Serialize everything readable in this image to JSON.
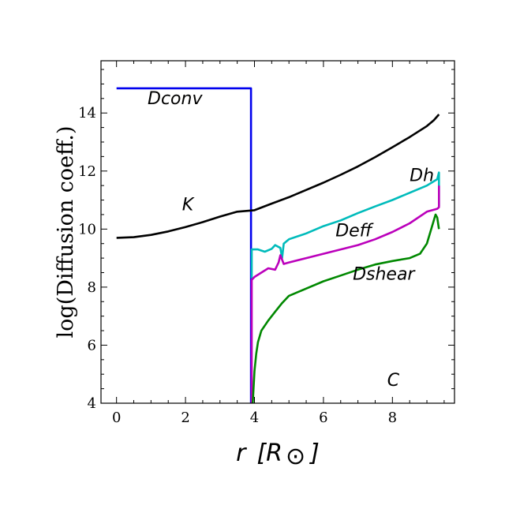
{
  "chart_data": {
    "type": "line",
    "title": "",
    "ylabel": "log(Diffusion coeff.)",
    "xlabel_main": "r",
    "xlabel_unit": "[R",
    "xlabel_sun": "⊙",
    "xlabel_close": "]",
    "xlim": [
      -0.45,
      9.8
    ],
    "ylim": [
      4,
      15.8
    ],
    "xticks": [
      0,
      2,
      4,
      6,
      8
    ],
    "yticks": [
      4,
      6,
      8,
      10,
      12,
      14
    ],
    "grid": false,
    "annotations": [
      {
        "text": "Dconv",
        "x": 0.9,
        "y": 14.3
      },
      {
        "text": "K",
        "x": 1.9,
        "y": 10.65
      },
      {
        "text": "Dh",
        "x": 8.5,
        "y": 11.65
      },
      {
        "text": "Deff",
        "x": 6.35,
        "y": 9.75
      },
      {
        "text": "Dshear",
        "x": 6.85,
        "y": 8.25
      },
      {
        "text": "C",
        "x": 7.85,
        "y": 4.6
      }
    ],
    "series": [
      {
        "color": "#0000ee",
        "x": [
          0,
          3.9,
          3.9
        ],
        "y": [
          14.85,
          14.85,
          4.0
        ]
      },
      {
        "color": "#000000",
        "x": [
          0,
          0.5,
          1.0,
          1.5,
          2.0,
          2.5,
          3.0,
          3.5,
          4.0,
          4.5,
          5.0,
          5.5,
          6.0,
          6.5,
          7.0,
          7.5,
          8.0,
          8.5,
          9.0,
          9.2,
          9.35
        ],
        "y": [
          9.7,
          9.72,
          9.8,
          9.92,
          10.07,
          10.24,
          10.43,
          10.6,
          10.65,
          10.88,
          11.1,
          11.35,
          11.6,
          11.87,
          12.16,
          12.48,
          12.82,
          13.17,
          13.55,
          13.75,
          13.95
        ]
      },
      {
        "color": "#00bbbb",
        "x": [
          3.92,
          3.92,
          4.1,
          4.3,
          4.5,
          4.6,
          4.75,
          4.8,
          4.85,
          5.0,
          5.5,
          6.0,
          6.5,
          7.0,
          7.5,
          8.0,
          8.5,
          9.0,
          9.3,
          9.35,
          9.35
        ],
        "y": [
          8.3,
          9.3,
          9.3,
          9.22,
          9.32,
          9.45,
          9.35,
          9.0,
          9.5,
          9.65,
          9.85,
          10.1,
          10.3,
          10.55,
          10.78,
          11.0,
          11.25,
          11.5,
          11.72,
          11.95,
          10.8
        ]
      },
      {
        "color": "#bb00bb",
        "x": [
          3.92,
          3.92,
          4.0,
          4.2,
          4.4,
          4.6,
          4.7,
          4.75,
          4.85,
          5.0,
          5.5,
          6.0,
          6.5,
          7.0,
          7.5,
          8.0,
          8.5,
          9.0,
          9.3,
          9.35,
          9.35
        ],
        "y": [
          4.0,
          8.25,
          8.35,
          8.5,
          8.65,
          8.6,
          8.85,
          9.1,
          8.8,
          8.85,
          9.0,
          9.15,
          9.3,
          9.45,
          9.65,
          9.9,
          10.2,
          10.6,
          10.7,
          10.75,
          11.5
        ]
      },
      {
        "color": "#008800",
        "x": [
          3.95,
          4.0,
          4.05,
          4.1,
          4.2,
          4.4,
          4.6,
          4.8,
          5.0,
          5.5,
          6.0,
          6.5,
          7.0,
          7.5,
          8.0,
          8.5,
          8.8,
          9.0,
          9.15,
          9.25,
          9.3,
          9.35
        ],
        "y": [
          4.0,
          5.1,
          5.7,
          6.1,
          6.5,
          6.85,
          7.15,
          7.45,
          7.7,
          7.95,
          8.2,
          8.4,
          8.6,
          8.78,
          8.9,
          9.0,
          9.15,
          9.5,
          10.1,
          10.5,
          10.4,
          10.0
        ]
      }
    ]
  }
}
